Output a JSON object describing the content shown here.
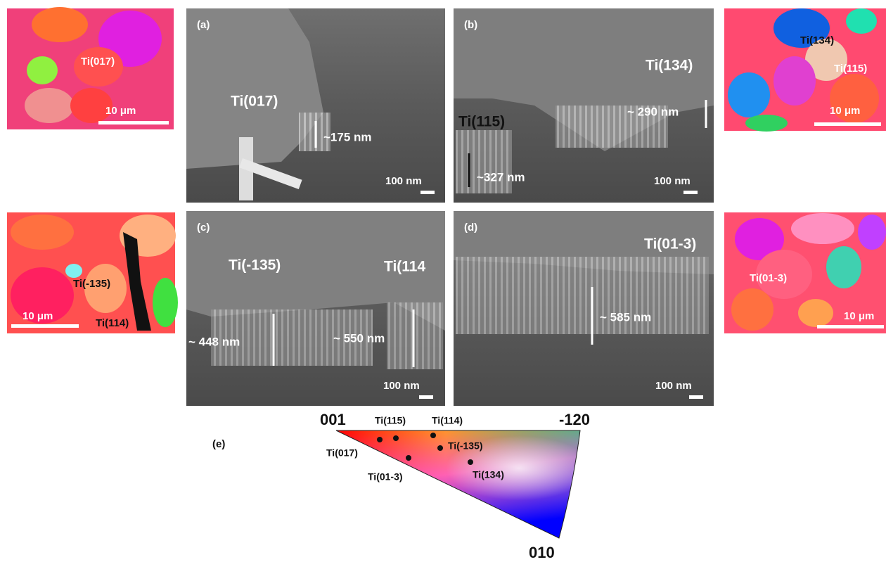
{
  "ebsd_maps": [
    {
      "labels": [
        "Ti(017)"
      ],
      "scale": "10 μm"
    },
    {
      "labels": [
        "Ti(134)",
        "Ti(115)"
      ],
      "scale": "10 μm"
    },
    {
      "labels": [
        "Ti(-135)",
        "Ti(114)"
      ],
      "scale": "10 μm"
    },
    {
      "labels": [
        "Ti(01-3)"
      ],
      "scale": "10 μm"
    }
  ],
  "sem_panels": [
    {
      "tag": "(a)",
      "labels": [
        "Ti(017)"
      ],
      "thickness": [
        "~175 nm"
      ],
      "scale": "100 nm"
    },
    {
      "tag": "(b)",
      "labels": [
        "Ti(134)",
        "Ti(115)"
      ],
      "thickness": [
        "~ 290 nm",
        "~327 nm"
      ],
      "scale": "100 nm"
    },
    {
      "tag": "(c)",
      "labels": [
        "Ti(-135)",
        "Ti(114"
      ],
      "thickness": [
        "~ 448 nm",
        "~ 550 nm"
      ],
      "scale": "100 nm"
    },
    {
      "tag": "(d)",
      "labels": [
        "Ti(01-3)"
      ],
      "thickness": [
        "~ 585 nm"
      ],
      "scale": "100 nm"
    }
  ],
  "ipf": {
    "tag": "(e)",
    "corners": [
      "001",
      "-120",
      "010"
    ],
    "points": [
      "Ti(115)",
      "Ti(114)",
      "Ti(017)",
      "Ti(-135)",
      "Ti(01-3)",
      "Ti(134)"
    ]
  }
}
